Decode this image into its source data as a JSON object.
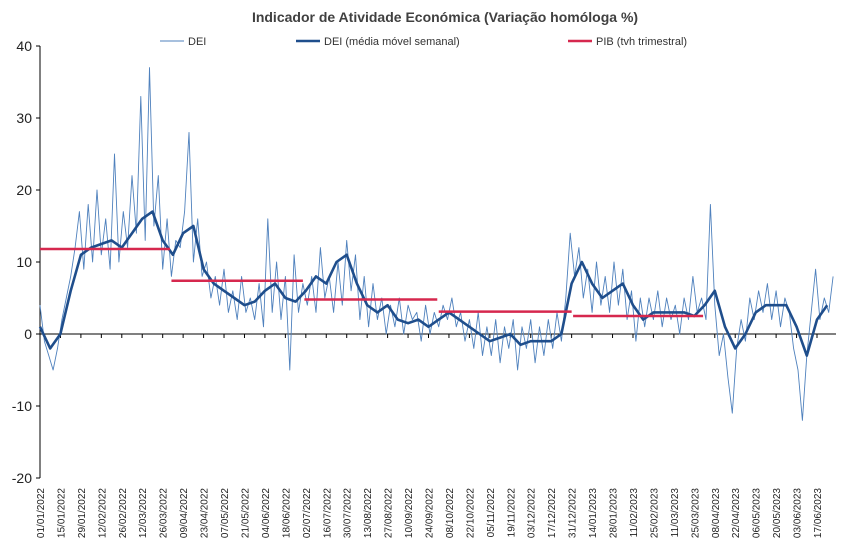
{
  "chart_data": {
    "type": "line",
    "title": "Indicador de Atividade Económica (Variação homóloga %)",
    "ylim": [
      -20,
      40
    ],
    "yticks": [
      "40",
      "30",
      "20",
      "10",
      "0",
      "-10",
      "-20"
    ],
    "ytick_values": [
      40,
      30,
      20,
      10,
      0,
      -10,
      -20
    ],
    "x_range": [
      "2022-01-01",
      "2023-06-30"
    ],
    "x_ticks": [
      "01/01/2022",
      "15/01/2022",
      "29/01/2022",
      "12/02/2022",
      "26/02/2022",
      "12/03/2022",
      "26/03/2022",
      "09/04/2022",
      "23/04/2022",
      "07/05/2022",
      "21/05/2022",
      "04/06/2022",
      "18/06/2022",
      "02/07/2022",
      "16/07/2022",
      "30/07/2022",
      "13/08/2022",
      "27/08/2022",
      "10/09/2022",
      "24/09/2022",
      "08/10/2022",
      "22/10/2022",
      "05/11/2022",
      "19/11/2022",
      "03/12/2022",
      "17/12/2022",
      "31/12/2022",
      "14/01/2023",
      "28/01/2023",
      "11/02/2023",
      "25/02/2023",
      "11/03/2023",
      "25/03/2023",
      "08/04/2023",
      "22/04/2023",
      "06/05/2023",
      "20/05/2023",
      "03/06/2023",
      "17/06/2023"
    ],
    "grid": false,
    "legend_position": "top",
    "series": [
      {
        "name": "DEI",
        "color": "#4f81bd",
        "style": "thin",
        "points": [
          [
            "2022-01-01",
            4
          ],
          [
            "2022-01-04",
            -1
          ],
          [
            "2022-01-07",
            -3
          ],
          [
            "2022-01-10",
            -5
          ],
          [
            "2022-01-13",
            -2
          ],
          [
            "2022-01-16",
            2
          ],
          [
            "2022-01-19",
            5
          ],
          [
            "2022-01-22",
            8
          ],
          [
            "2022-01-25",
            12
          ],
          [
            "2022-01-28",
            17
          ],
          [
            "2022-01-31",
            9
          ],
          [
            "2022-02-03",
            18
          ],
          [
            "2022-02-06",
            10
          ],
          [
            "2022-02-09",
            20
          ],
          [
            "2022-02-12",
            11
          ],
          [
            "2022-02-15",
            16
          ],
          [
            "2022-02-18",
            9
          ],
          [
            "2022-02-21",
            25
          ],
          [
            "2022-02-24",
            10
          ],
          [
            "2022-02-27",
            17
          ],
          [
            "2022-03-02",
            12
          ],
          [
            "2022-03-05",
            22
          ],
          [
            "2022-03-08",
            14
          ],
          [
            "2022-03-11",
            33
          ],
          [
            "2022-03-14",
            13
          ],
          [
            "2022-03-17",
            37
          ],
          [
            "2022-03-20",
            15
          ],
          [
            "2022-03-23",
            22
          ],
          [
            "2022-03-26",
            9
          ],
          [
            "2022-03-29",
            16
          ],
          [
            "2022-04-01",
            8
          ],
          [
            "2022-04-04",
            13
          ],
          [
            "2022-04-07",
            12
          ],
          [
            "2022-04-10",
            17
          ],
          [
            "2022-04-13",
            28
          ],
          [
            "2022-04-16",
            10
          ],
          [
            "2022-04-19",
            16
          ],
          [
            "2022-04-22",
            8
          ],
          [
            "2022-04-25",
            10
          ],
          [
            "2022-04-28",
            5
          ],
          [
            "2022-05-01",
            8
          ],
          [
            "2022-05-04",
            4
          ],
          [
            "2022-05-07",
            9
          ],
          [
            "2022-05-10",
            3
          ],
          [
            "2022-05-13",
            6
          ],
          [
            "2022-05-16",
            2
          ],
          [
            "2022-05-19",
            8
          ],
          [
            "2022-05-22",
            3
          ],
          [
            "2022-05-25",
            5
          ],
          [
            "2022-05-28",
            2
          ],
          [
            "2022-05-31",
            7
          ],
          [
            "2022-06-03",
            1
          ],
          [
            "2022-06-06",
            16
          ],
          [
            "2022-06-09",
            3
          ],
          [
            "2022-06-12",
            10
          ],
          [
            "2022-06-15",
            2
          ],
          [
            "2022-06-18",
            8
          ],
          [
            "2022-06-21",
            -5
          ],
          [
            "2022-06-24",
            11
          ],
          [
            "2022-06-27",
            3
          ],
          [
            "2022-06-30",
            7
          ],
          [
            "2022-07-03",
            4
          ],
          [
            "2022-07-06",
            8
          ],
          [
            "2022-07-09",
            3
          ],
          [
            "2022-07-12",
            12
          ],
          [
            "2022-07-15",
            5
          ],
          [
            "2022-07-18",
            8
          ],
          [
            "2022-07-21",
            3
          ],
          [
            "2022-07-24",
            10
          ],
          [
            "2022-07-27",
            4
          ],
          [
            "2022-07-30",
            13
          ],
          [
            "2022-08-02",
            6
          ],
          [
            "2022-08-05",
            11
          ],
          [
            "2022-08-08",
            2
          ],
          [
            "2022-08-11",
            8
          ],
          [
            "2022-08-14",
            1
          ],
          [
            "2022-08-17",
            7
          ],
          [
            "2022-08-20",
            2
          ],
          [
            "2022-08-23",
            5
          ],
          [
            "2022-08-26",
            0
          ],
          [
            "2022-08-29",
            4
          ],
          [
            "2022-09-01",
            1
          ],
          [
            "2022-09-04",
            5
          ],
          [
            "2022-09-07",
            0
          ],
          [
            "2022-09-10",
            4
          ],
          [
            "2022-09-13",
            2
          ],
          [
            "2022-09-16",
            3
          ],
          [
            "2022-09-19",
            -1
          ],
          [
            "2022-09-22",
            4
          ],
          [
            "2022-09-25",
            0
          ],
          [
            "2022-09-28",
            3
          ],
          [
            "2022-10-01",
            1
          ],
          [
            "2022-10-04",
            4
          ],
          [
            "2022-10-07",
            2
          ],
          [
            "2022-10-10",
            5
          ],
          [
            "2022-10-13",
            1
          ],
          [
            "2022-10-16",
            3
          ],
          [
            "2022-10-19",
            -1
          ],
          [
            "2022-10-22",
            2
          ],
          [
            "2022-10-25",
            -2
          ],
          [
            "2022-10-28",
            3
          ],
          [
            "2022-10-31",
            -3
          ],
          [
            "2022-11-03",
            1
          ],
          [
            "2022-11-06",
            -3
          ],
          [
            "2022-11-09",
            2
          ],
          [
            "2022-11-12",
            -4
          ],
          [
            "2022-11-15",
            1
          ],
          [
            "2022-11-18",
            -2
          ],
          [
            "2022-11-21",
            2
          ],
          [
            "2022-11-24",
            -5
          ],
          [
            "2022-11-27",
            1
          ],
          [
            "2022-11-30",
            -2
          ],
          [
            "2022-12-03",
            2
          ],
          [
            "2022-12-06",
            -4
          ],
          [
            "2022-12-09",
            1
          ],
          [
            "2022-12-12",
            -3
          ],
          [
            "2022-12-15",
            2
          ],
          [
            "2022-12-18",
            -2
          ],
          [
            "2022-12-21",
            3
          ],
          [
            "2022-12-24",
            -1
          ],
          [
            "2022-12-27",
            5
          ],
          [
            "2022-12-30",
            14
          ],
          [
            "2023-01-02",
            8
          ],
          [
            "2023-01-05",
            12
          ],
          [
            "2023-01-08",
            5
          ],
          [
            "2023-01-11",
            9
          ],
          [
            "2023-01-14",
            3
          ],
          [
            "2023-01-17",
            10
          ],
          [
            "2023-01-20",
            4
          ],
          [
            "2023-01-23",
            8
          ],
          [
            "2023-01-26",
            3
          ],
          [
            "2023-01-29",
            10
          ],
          [
            "2023-02-01",
            4
          ],
          [
            "2023-02-04",
            9
          ],
          [
            "2023-02-07",
            2
          ],
          [
            "2023-02-10",
            6
          ],
          [
            "2023-02-13",
            -1
          ],
          [
            "2023-02-16",
            5
          ],
          [
            "2023-02-19",
            1
          ],
          [
            "2023-02-22",
            5
          ],
          [
            "2023-02-25",
            2
          ],
          [
            "2023-02-28",
            6
          ],
          [
            "2023-03-03",
            1
          ],
          [
            "2023-03-06",
            5
          ],
          [
            "2023-03-09",
            2
          ],
          [
            "2023-03-12",
            4
          ],
          [
            "2023-03-15",
            0
          ],
          [
            "2023-03-18",
            5
          ],
          [
            "2023-03-21",
            2
          ],
          [
            "2023-03-24",
            8
          ],
          [
            "2023-03-27",
            3
          ],
          [
            "2023-03-30",
            5
          ],
          [
            "2023-04-02",
            2
          ],
          [
            "2023-04-05",
            18
          ],
          [
            "2023-04-08",
            4
          ],
          [
            "2023-04-11",
            -3
          ],
          [
            "2023-04-14",
            0
          ],
          [
            "2023-04-17",
            -6
          ],
          [
            "2023-04-20",
            -11
          ],
          [
            "2023-04-23",
            -2
          ],
          [
            "2023-04-26",
            2
          ],
          [
            "2023-04-29",
            -1
          ],
          [
            "2023-05-02",
            5
          ],
          [
            "2023-05-05",
            2
          ],
          [
            "2023-05-08",
            6
          ],
          [
            "2023-05-11",
            3
          ],
          [
            "2023-05-14",
            7
          ],
          [
            "2023-05-17",
            2
          ],
          [
            "2023-05-20",
            6
          ],
          [
            "2023-05-23",
            1
          ],
          [
            "2023-05-26",
            5
          ],
          [
            "2023-05-29",
            3
          ],
          [
            "2023-06-01",
            -2
          ],
          [
            "2023-06-04",
            -5
          ],
          [
            "2023-06-07",
            -12
          ],
          [
            "2023-06-10",
            -3
          ],
          [
            "2023-06-13",
            3
          ],
          [
            "2023-06-16",
            9
          ],
          [
            "2023-06-19",
            2
          ],
          [
            "2023-06-22",
            5
          ],
          [
            "2023-06-25",
            3
          ],
          [
            "2023-06-28",
            8
          ]
        ]
      },
      {
        "name": "DEI (média móvel semanal)",
        "color": "#1f4e8c",
        "style": "thick",
        "points": [
          [
            "2022-01-01",
            1
          ],
          [
            "2022-01-08",
            -2
          ],
          [
            "2022-01-15",
            0
          ],
          [
            "2022-01-22",
            6
          ],
          [
            "2022-01-29",
            11
          ],
          [
            "2022-02-05",
            12
          ],
          [
            "2022-02-12",
            12.5
          ],
          [
            "2022-02-19",
            13
          ],
          [
            "2022-02-26",
            12
          ],
          [
            "2022-03-05",
            14
          ],
          [
            "2022-03-12",
            16
          ],
          [
            "2022-03-19",
            17
          ],
          [
            "2022-03-26",
            13
          ],
          [
            "2022-04-02",
            11
          ],
          [
            "2022-04-09",
            14
          ],
          [
            "2022-04-16",
            15
          ],
          [
            "2022-04-23",
            9
          ],
          [
            "2022-04-30",
            7
          ],
          [
            "2022-05-07",
            6
          ],
          [
            "2022-05-14",
            5
          ],
          [
            "2022-05-21",
            4
          ],
          [
            "2022-05-28",
            4.5
          ],
          [
            "2022-06-04",
            6
          ],
          [
            "2022-06-11",
            7
          ],
          [
            "2022-06-18",
            5
          ],
          [
            "2022-06-25",
            4.5
          ],
          [
            "2022-07-02",
            6
          ],
          [
            "2022-07-09",
            8
          ],
          [
            "2022-07-16",
            7
          ],
          [
            "2022-07-23",
            10
          ],
          [
            "2022-07-30",
            11
          ],
          [
            "2022-08-06",
            7
          ],
          [
            "2022-08-13",
            4
          ],
          [
            "2022-08-20",
            3
          ],
          [
            "2022-08-27",
            4
          ],
          [
            "2022-09-03",
            2
          ],
          [
            "2022-09-10",
            1.5
          ],
          [
            "2022-09-17",
            2
          ],
          [
            "2022-09-24",
            1
          ],
          [
            "2022-10-01",
            2
          ],
          [
            "2022-10-08",
            3
          ],
          [
            "2022-10-15",
            2
          ],
          [
            "2022-10-22",
            1
          ],
          [
            "2022-10-29",
            0
          ],
          [
            "2022-11-05",
            -1
          ],
          [
            "2022-11-12",
            -0.5
          ],
          [
            "2022-11-19",
            0
          ],
          [
            "2022-11-26",
            -1.5
          ],
          [
            "2022-12-03",
            -1
          ],
          [
            "2022-12-10",
            -1
          ],
          [
            "2022-12-17",
            -1
          ],
          [
            "2022-12-24",
            0
          ],
          [
            "2022-12-31",
            7
          ],
          [
            "2023-01-07",
            10
          ],
          [
            "2023-01-14",
            7
          ],
          [
            "2023-01-21",
            5
          ],
          [
            "2023-01-28",
            6
          ],
          [
            "2023-02-04",
            7
          ],
          [
            "2023-02-11",
            4
          ],
          [
            "2023-02-18",
            2
          ],
          [
            "2023-02-25",
            3
          ],
          [
            "2023-03-04",
            3
          ],
          [
            "2023-03-11",
            3
          ],
          [
            "2023-03-18",
            3
          ],
          [
            "2023-03-25",
            2.5
          ],
          [
            "2023-04-01",
            4
          ],
          [
            "2023-04-08",
            6
          ],
          [
            "2023-04-15",
            1
          ],
          [
            "2023-04-22",
            -2
          ],
          [
            "2023-04-29",
            0
          ],
          [
            "2023-05-06",
            3
          ],
          [
            "2023-05-13",
            4
          ],
          [
            "2023-05-20",
            4
          ],
          [
            "2023-05-27",
            4
          ],
          [
            "2023-06-03",
            1
          ],
          [
            "2023-06-10",
            -3
          ],
          [
            "2023-06-17",
            2
          ],
          [
            "2023-06-24",
            4
          ]
        ]
      },
      {
        "name": "PIB (tvh trimestral)",
        "color": "#d6284e",
        "style": "step",
        "segments": [
          {
            "start": "2022-01-01",
            "end": "2022-03-31",
            "value": 11.8
          },
          {
            "start": "2022-04-01",
            "end": "2022-06-30",
            "value": 7.4
          },
          {
            "start": "2022-07-01",
            "end": "2022-09-30",
            "value": 4.8
          },
          {
            "start": "2022-10-01",
            "end": "2022-12-31",
            "value": 3.1
          },
          {
            "start": "2023-01-01",
            "end": "2023-03-31",
            "value": 2.5
          }
        ]
      }
    ]
  }
}
